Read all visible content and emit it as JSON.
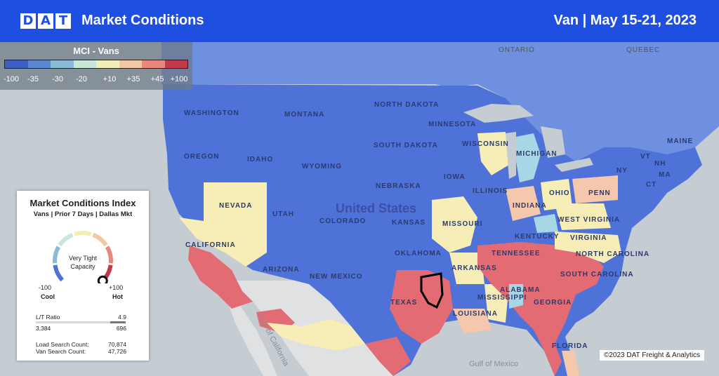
{
  "header": {
    "logo_letters": [
      "D",
      "A",
      "T"
    ],
    "title": "Market Conditions",
    "right_title": "Van  |  May 15-21, 2023"
  },
  "scale": {
    "title": "MCI - Vans",
    "ticks": [
      "-100",
      "-35",
      "-30",
      "-20",
      "+10",
      "+35",
      "+45",
      "+100"
    ],
    "colors": [
      "#3d5fc4",
      "#5b86d0",
      "#8bbad6",
      "#c9e6d7",
      "#f3edb8",
      "#f2c7a3",
      "#e8877b",
      "#c23a48"
    ]
  },
  "map": {
    "colors": {
      "cold": "#4f72d8",
      "cool": "#6f8fe0",
      "mild": "#f6eeb6",
      "teal": "#a8d6e4",
      "warm": "#f5c7ad",
      "hot": "#e36b74",
      "land_outside": "#dfe1e3",
      "water": "#c5ccd2"
    },
    "labels": {
      "countries": [
        "ONTARIO",
        "QUEBEC",
        "United States",
        "Gulf of Mexico"
      ],
      "states": [
        "WASHINGTON",
        "MONTANA",
        "NORTH DAKOTA",
        "MINNESOTA",
        "OREGON",
        "IDAHO",
        "SOUTH DAKOTA",
        "WISCONSIN",
        "WYOMING",
        "NEBRASKA",
        "IOWA",
        "MICHIGAN",
        "NEVADA",
        "UTAH",
        "COLORADO",
        "KANSAS",
        "MISSOURI",
        "ILLINOIS",
        "INDIANA",
        "OHIO",
        "PENN",
        "CALIFORNIA",
        "ARIZONA",
        "NEW MEXICO",
        "OKLAHOMA",
        "ARKANSAS",
        "TENNESSEE",
        "KENTUCKY",
        "WEST VIRGINIA",
        "VIRGINIA",
        "NORTH CAROLINA",
        "SOUTH CAROLINA",
        "TEXAS",
        "LOUISIANA",
        "MISSISSIPPI",
        "ALABAMA",
        "GEORGIA",
        "FLORIDA",
        "MAINE",
        "NY",
        "VT",
        "NH",
        "MA",
        "CT"
      ],
      "water": [
        "Gulf of California"
      ]
    }
  },
  "mci_panel": {
    "title": "Market Conditions Index",
    "subtitle": "Vans | Prior 7 Days | Dallas Mkt",
    "gauge_label_line1": "Very Tight",
    "gauge_label_line2": "Capacity",
    "gauge_level": 1.0,
    "min_value": "-100",
    "max_value": "+100",
    "min_label": "Cool",
    "max_label": "Hot",
    "lt_ratio_label": "L/T Ratio",
    "lt_ratio_value": "4.9",
    "loads_value": "3,384",
    "trucks_value": "696",
    "load_search_label": "Load Search Count:",
    "load_search_value": "70,874",
    "van_search_label": "Van Search Count:",
    "van_search_value": "47,726"
  },
  "copyright": "©2023 DAT Freight & Analytics"
}
